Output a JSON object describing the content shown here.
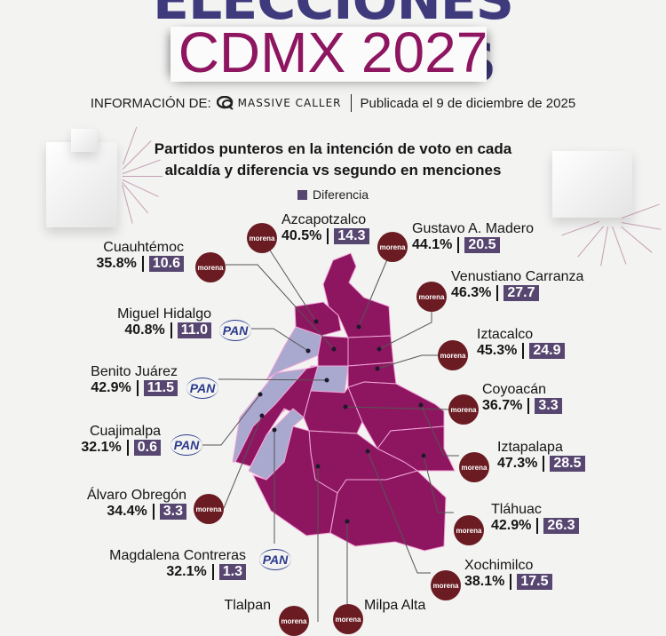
{
  "header": {
    "title_line1": "ELECCIONES ALCALDÍAS",
    "title_line2": "CDMX 2027",
    "info_prefix": "INFORMACIÓN DE:",
    "brand": "MASSIVE CALLER",
    "published": "Publicada el 9 de diciembre de 2025"
  },
  "subtitle_line1": "Partidos punteros en la intención de voto en cada",
  "subtitle_line2": "alcaldía y diferencia vs segundo en menciones",
  "legend": {
    "label": "Diferencia",
    "color": "#574770"
  },
  "colors": {
    "morena": "#8e1660",
    "pan": "#a9a8cf",
    "morena_logo": "#6a1c22",
    "pan_logo": "#2c3a8c",
    "title_blue": "#3f3a7c",
    "title_magenta": "#8e1660"
  },
  "party_logos": {
    "morena": "morena",
    "pan": "PAN"
  },
  "alcaldias": [
    {
      "name": "Azcapotzalco",
      "party": "morena",
      "pct": "40.5%",
      "diff": "14.3"
    },
    {
      "name": "Gustavo A. Madero",
      "party": "morena",
      "pct": "44.1%",
      "diff": "20.5"
    },
    {
      "name": "Cuauhtémoc",
      "party": "morena",
      "pct": "35.8%",
      "diff": "10.6"
    },
    {
      "name": "Venustiano Carranza",
      "party": "morena",
      "pct": "46.3%",
      "diff": "27.7"
    },
    {
      "name": "Miguel Hidalgo",
      "party": "pan",
      "pct": "40.8%",
      "diff": "11.0"
    },
    {
      "name": "Iztacalco",
      "party": "morena",
      "pct": "45.3%",
      "diff": "24.9"
    },
    {
      "name": "Benito Juárez",
      "party": "pan",
      "pct": "42.9%",
      "diff": "11.5"
    },
    {
      "name": "Coyoacán",
      "party": "morena",
      "pct": "36.7%",
      "diff": "3.3"
    },
    {
      "name": "Cuajimalpa",
      "party": "pan",
      "pct": "32.1%",
      "diff": "0.6"
    },
    {
      "name": "Iztapalapa",
      "party": "morena",
      "pct": "47.3%",
      "diff": "28.5"
    },
    {
      "name": "Álvaro Obregón",
      "party": "morena",
      "pct": "34.4%",
      "diff": "3.3"
    },
    {
      "name": "Tláhuac",
      "party": "morena",
      "pct": "42.9%",
      "diff": "26.3"
    },
    {
      "name": "Magdalena Contreras",
      "party": "pan",
      "pct": "32.1%",
      "diff": "1.3"
    },
    {
      "name": "Xochimilco",
      "party": "morena",
      "pct": "38.1%",
      "diff": "17.5"
    },
    {
      "name": "Tlalpan",
      "party": "morena",
      "pct": null,
      "diff": null
    },
    {
      "name": "Milpa Alta",
      "party": "morena",
      "pct": null,
      "diff": null
    }
  ]
}
